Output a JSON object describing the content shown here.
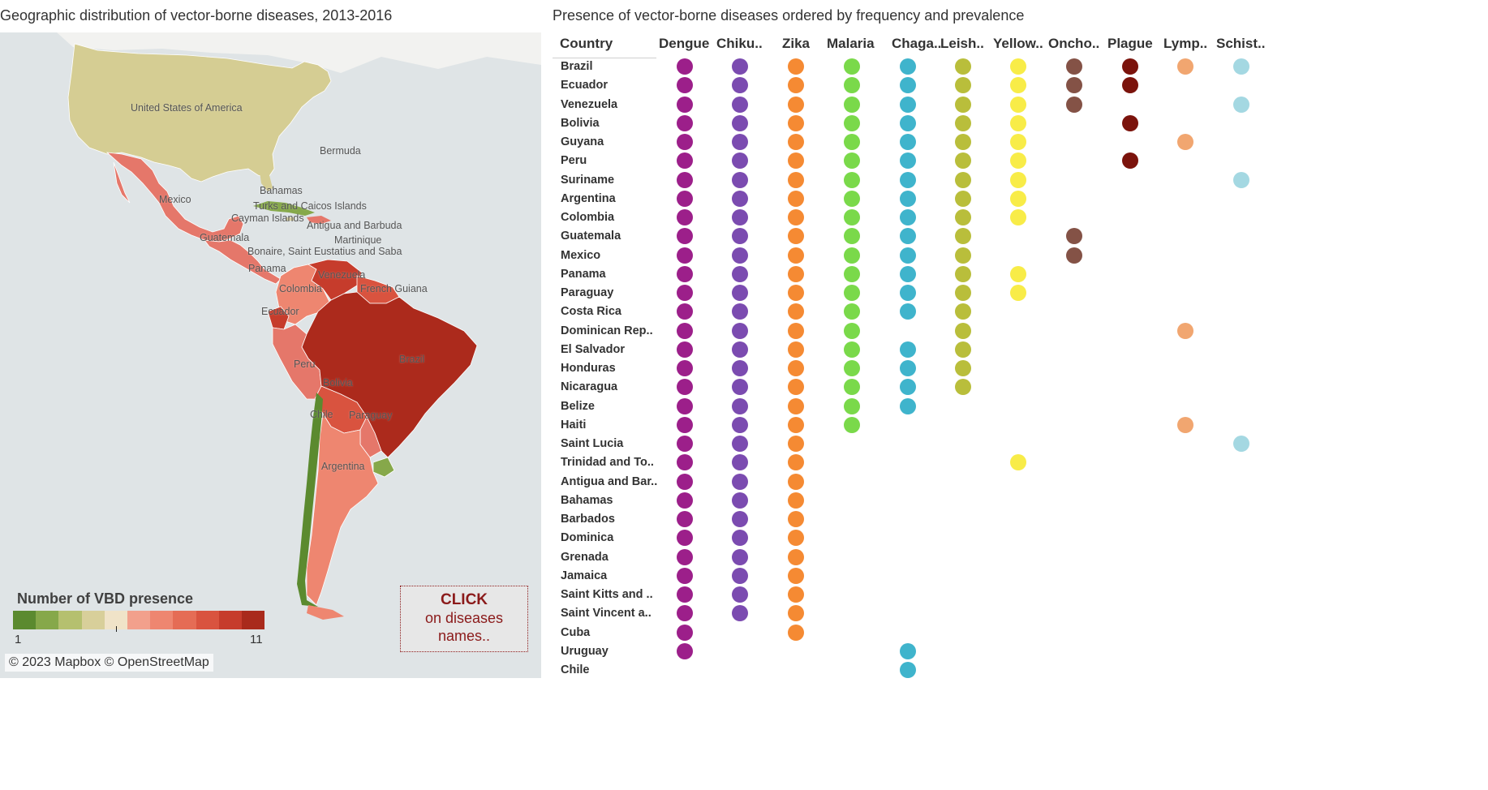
{
  "titles": {
    "map": "Geographic distribution of vector-borne diseases, 2013-2016",
    "table": "Presence of vector-borne diseases ordered by frequency and prevalence"
  },
  "map": {
    "labels": [
      {
        "id": "usa",
        "text": "United States of America"
      },
      {
        "id": "bermuda",
        "text": "Bermuda"
      },
      {
        "id": "bahamas",
        "text": "Bahamas"
      },
      {
        "id": "turks",
        "text": "Turks and Caicos Islands"
      },
      {
        "id": "cayman",
        "text": "Cayman Islands"
      },
      {
        "id": "antigua",
        "text": "Antigua and Barbuda"
      },
      {
        "id": "martinique",
        "text": "Martinique"
      },
      {
        "id": "bonaire",
        "text": "Bonaire, Saint Eustatius and Saba"
      },
      {
        "id": "mexico",
        "text": "Mexico"
      },
      {
        "id": "guatemala",
        "text": "Guatemala"
      },
      {
        "id": "panama",
        "text": "Panama"
      },
      {
        "id": "venezuela",
        "text": "Venezuela"
      },
      {
        "id": "colombia",
        "text": "Colombia"
      },
      {
        "id": "fguiana",
        "text": "French Guiana"
      },
      {
        "id": "ecuador",
        "text": "Ecuador"
      },
      {
        "id": "brazil",
        "text": "Brazil"
      },
      {
        "id": "peru",
        "text": "Peru"
      },
      {
        "id": "bolivia",
        "text": "Bolivia"
      },
      {
        "id": "chile",
        "text": "Chile"
      },
      {
        "id": "paraguay",
        "text": "Paraguay"
      },
      {
        "id": "argentina",
        "text": "Argentina"
      }
    ],
    "legend": {
      "title": "Number of VBD presence",
      "min": "1",
      "max": "11",
      "colors": [
        "#5b8a2f",
        "#86a84a",
        "#b5c06f",
        "#d8cf9a",
        "#f0e3c8",
        "#f2a08c",
        "#ee8670",
        "#e56c55",
        "#d9533f",
        "#c63c2c",
        "#a92a1c"
      ]
    },
    "attribution": "© 2023 Mapbox © OpenStreetMap",
    "click_box": {
      "title": "CLICK",
      "line2": "on diseases",
      "line3": "names.."
    }
  },
  "table": {
    "country_header": "Country",
    "diseases": [
      {
        "label": "Dengue",
        "color": "#9c1f8a"
      },
      {
        "label": "Chiku..",
        "color": "#7b4bb0"
      },
      {
        "label": "Zika",
        "color": "#f58a33"
      },
      {
        "label": "Malaria",
        "color": "#7ad94a"
      },
      {
        "label": "Chaga..",
        "color": "#3fb4cc"
      },
      {
        "label": "Leish..",
        "color": "#b9be3b"
      },
      {
        "label": "Yellow..",
        "color": "#f8ec48"
      },
      {
        "label": "Oncho..",
        "color": "#845246"
      },
      {
        "label": "Plague",
        "color": "#7b130c"
      },
      {
        "label": "Lymp..",
        "color": "#f1a670"
      },
      {
        "label": "Schist..",
        "color": "#a4d8e2"
      }
    ],
    "rows": [
      {
        "country": "Brazil",
        "presence": [
          1,
          1,
          1,
          1,
          1,
          1,
          1,
          1,
          1,
          1,
          1
        ]
      },
      {
        "country": "Ecuador",
        "presence": [
          1,
          1,
          1,
          1,
          1,
          1,
          1,
          1,
          1,
          0,
          0
        ]
      },
      {
        "country": "Venezuela",
        "presence": [
          1,
          1,
          1,
          1,
          1,
          1,
          1,
          1,
          0,
          0,
          1
        ]
      },
      {
        "country": "Bolivia",
        "presence": [
          1,
          1,
          1,
          1,
          1,
          1,
          1,
          0,
          1,
          0,
          0
        ]
      },
      {
        "country": "Guyana",
        "presence": [
          1,
          1,
          1,
          1,
          1,
          1,
          1,
          0,
          0,
          1,
          0
        ]
      },
      {
        "country": "Peru",
        "presence": [
          1,
          1,
          1,
          1,
          1,
          1,
          1,
          0,
          1,
          0,
          0
        ]
      },
      {
        "country": "Suriname",
        "presence": [
          1,
          1,
          1,
          1,
          1,
          1,
          1,
          0,
          0,
          0,
          1
        ]
      },
      {
        "country": "Argentina",
        "presence": [
          1,
          1,
          1,
          1,
          1,
          1,
          1,
          0,
          0,
          0,
          0
        ]
      },
      {
        "country": "Colombia",
        "presence": [
          1,
          1,
          1,
          1,
          1,
          1,
          1,
          0,
          0,
          0,
          0
        ]
      },
      {
        "country": "Guatemala",
        "presence": [
          1,
          1,
          1,
          1,
          1,
          1,
          0,
          1,
          0,
          0,
          0
        ]
      },
      {
        "country": "Mexico",
        "presence": [
          1,
          1,
          1,
          1,
          1,
          1,
          0,
          1,
          0,
          0,
          0
        ]
      },
      {
        "country": "Panama",
        "presence": [
          1,
          1,
          1,
          1,
          1,
          1,
          1,
          0,
          0,
          0,
          0
        ]
      },
      {
        "country": "Paraguay",
        "presence": [
          1,
          1,
          1,
          1,
          1,
          1,
          1,
          0,
          0,
          0,
          0
        ]
      },
      {
        "country": "Costa Rica",
        "presence": [
          1,
          1,
          1,
          1,
          1,
          1,
          0,
          0,
          0,
          0,
          0
        ]
      },
      {
        "country": "Dominican Rep..",
        "presence": [
          1,
          1,
          1,
          1,
          0,
          1,
          0,
          0,
          0,
          1,
          0
        ]
      },
      {
        "country": "El Salvador",
        "presence": [
          1,
          1,
          1,
          1,
          1,
          1,
          0,
          0,
          0,
          0,
          0
        ]
      },
      {
        "country": "Honduras",
        "presence": [
          1,
          1,
          1,
          1,
          1,
          1,
          0,
          0,
          0,
          0,
          0
        ]
      },
      {
        "country": "Nicaragua",
        "presence": [
          1,
          1,
          1,
          1,
          1,
          1,
          0,
          0,
          0,
          0,
          0
        ]
      },
      {
        "country": "Belize",
        "presence": [
          1,
          1,
          1,
          1,
          1,
          0,
          0,
          0,
          0,
          0,
          0
        ]
      },
      {
        "country": "Haiti",
        "presence": [
          1,
          1,
          1,
          1,
          0,
          0,
          0,
          0,
          0,
          1,
          0
        ]
      },
      {
        "country": "Saint Lucia",
        "presence": [
          1,
          1,
          1,
          0,
          0,
          0,
          0,
          0,
          0,
          0,
          1
        ]
      },
      {
        "country": "Trinidad and To..",
        "presence": [
          1,
          1,
          1,
          0,
          0,
          0,
          1,
          0,
          0,
          0,
          0
        ]
      },
      {
        "country": "Antigua and Bar..",
        "presence": [
          1,
          1,
          1,
          0,
          0,
          0,
          0,
          0,
          0,
          0,
          0
        ]
      },
      {
        "country": "Bahamas",
        "presence": [
          1,
          1,
          1,
          0,
          0,
          0,
          0,
          0,
          0,
          0,
          0
        ]
      },
      {
        "country": "Barbados",
        "presence": [
          1,
          1,
          1,
          0,
          0,
          0,
          0,
          0,
          0,
          0,
          0
        ]
      },
      {
        "country": "Dominica",
        "presence": [
          1,
          1,
          1,
          0,
          0,
          0,
          0,
          0,
          0,
          0,
          0
        ]
      },
      {
        "country": "Grenada",
        "presence": [
          1,
          1,
          1,
          0,
          0,
          0,
          0,
          0,
          0,
          0,
          0
        ]
      },
      {
        "country": "Jamaica",
        "presence": [
          1,
          1,
          1,
          0,
          0,
          0,
          0,
          0,
          0,
          0,
          0
        ]
      },
      {
        "country": "Saint Kitts and ..",
        "presence": [
          1,
          1,
          1,
          0,
          0,
          0,
          0,
          0,
          0,
          0,
          0
        ]
      },
      {
        "country": "Saint Vincent a..",
        "presence": [
          1,
          1,
          1,
          0,
          0,
          0,
          0,
          0,
          0,
          0,
          0
        ]
      },
      {
        "country": "Cuba",
        "presence": [
          1,
          0,
          1,
          0,
          0,
          0,
          0,
          0,
          0,
          0,
          0
        ]
      },
      {
        "country": "Uruguay",
        "presence": [
          1,
          0,
          0,
          0,
          1,
          0,
          0,
          0,
          0,
          0,
          0
        ]
      },
      {
        "country": "Chile",
        "presence": [
          0,
          0,
          0,
          0,
          1,
          0,
          0,
          0,
          0,
          0,
          0
        ]
      }
    ]
  }
}
